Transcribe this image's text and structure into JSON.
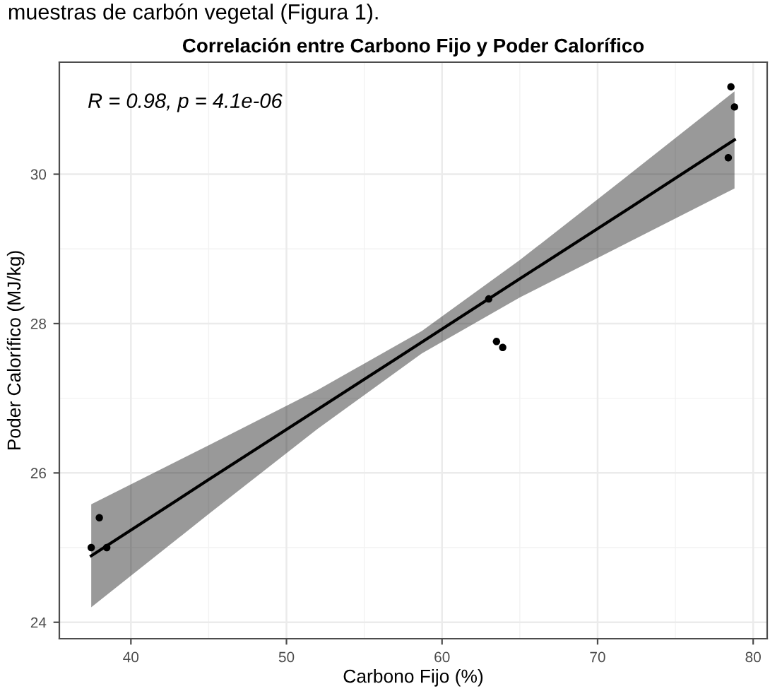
{
  "chart_data": {
    "type": "scatter",
    "title": "Correlación entre Carbono Fijo y Poder Calorífico",
    "xlabel": "Carbono Fijo (%)",
    "ylabel": "Poder Calorífico (MJ/kg)",
    "annotations": [
      "muestras de carbón vegetal (Figura 1).",
      "R = 0.98, p = 4.1e-06"
    ],
    "xlim": [
      35.4,
      80.9
    ],
    "ylim": [
      23.78,
      31.5
    ],
    "xticks": [
      40,
      50,
      60,
      70,
      80
    ],
    "yticks": [
      24,
      26,
      28,
      30
    ],
    "grid": true,
    "series": [
      {
        "marker": "circle",
        "color": "#000000",
        "x": [
          37.45,
          37.97,
          38.45,
          63.0,
          63.5,
          63.9,
          78.57,
          78.8,
          78.4
        ],
        "values": [
          25.0,
          25.4,
          25.0,
          28.33,
          27.76,
          27.68,
          31.17,
          30.9,
          30.22
        ]
      },
      {
        "type": "line",
        "marker": "none",
        "color": "#000000",
        "x": [
          37.45,
          45,
          52,
          58.7,
          65,
          72,
          78.8
        ],
        "values": [
          24.89,
          25.91,
          26.85,
          27.75,
          28.6,
          29.54,
          30.46
        ],
        "lower": [
          24.2,
          25.45,
          26.59,
          27.6,
          28.35,
          29.09,
          29.81
        ],
        "upper": [
          25.58,
          26.37,
          27.11,
          27.9,
          28.85,
          29.99,
          31.11
        ]
      }
    ]
  }
}
